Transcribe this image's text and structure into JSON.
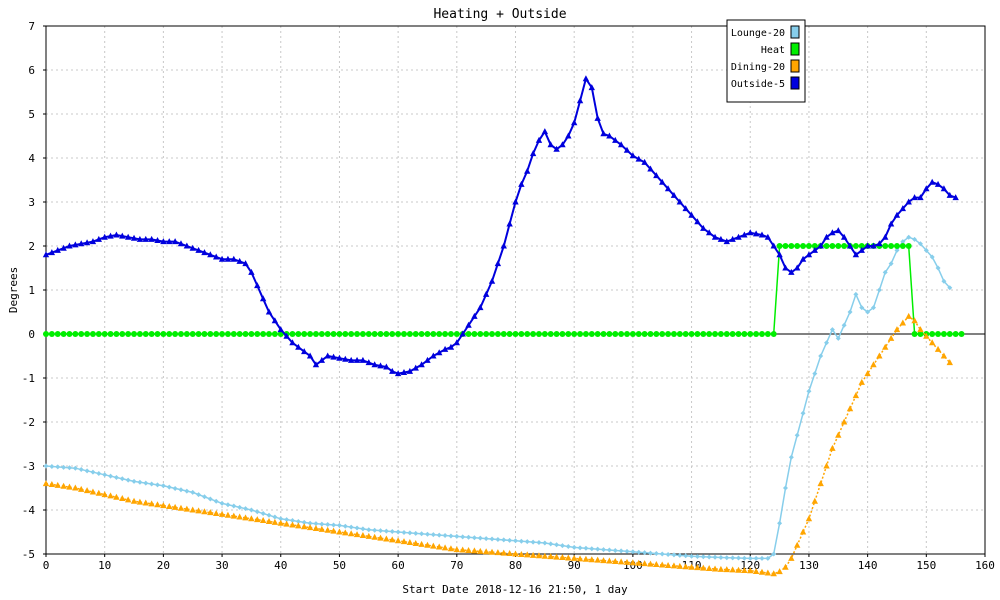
{
  "chart_data": {
    "type": "line",
    "title": "Heating + Outside",
    "xlabel": "Start Date 2018-12-16 21:50, 1 day",
    "ylabel": "Degrees",
    "xlim": [
      0,
      160
    ],
    "ylim": [
      -5,
      7
    ],
    "xticks": [
      0,
      10,
      20,
      30,
      40,
      50,
      60,
      70,
      80,
      90,
      100,
      110,
      120,
      130,
      140,
      150,
      160
    ],
    "yticks": [
      -5,
      -4,
      -3,
      -2,
      -1,
      0,
      1,
      2,
      3,
      4,
      5,
      6,
      7
    ],
    "grid": true,
    "legend_position": "top-right",
    "series": [
      {
        "name": "Lounge-20",
        "color": "#87CEEB",
        "marker": "diamond",
        "points": [
          [
            0,
            -3.0
          ],
          [
            5,
            -3.05
          ],
          [
            10,
            -3.2
          ],
          [
            15,
            -3.35
          ],
          [
            20,
            -3.45
          ],
          [
            25,
            -3.6
          ],
          [
            30,
            -3.85
          ],
          [
            35,
            -4.0
          ],
          [
            40,
            -4.2
          ],
          [
            45,
            -4.3
          ],
          [
            50,
            -4.35
          ],
          [
            55,
            -4.45
          ],
          [
            60,
            -4.5
          ],
          [
            65,
            -4.55
          ],
          [
            70,
            -4.6
          ],
          [
            75,
            -4.65
          ],
          [
            80,
            -4.7
          ],
          [
            85,
            -4.75
          ],
          [
            90,
            -4.85
          ],
          [
            95,
            -4.9
          ],
          [
            100,
            -4.95
          ],
          [
            105,
            -5.0
          ],
          [
            110,
            -5.05
          ],
          [
            115,
            -5.08
          ],
          [
            120,
            -5.1
          ],
          [
            123,
            -5.1
          ],
          [
            124,
            -5.0
          ],
          [
            125,
            -4.3
          ],
          [
            126,
            -3.5
          ],
          [
            127,
            -2.8
          ],
          [
            128,
            -2.3
          ],
          [
            129,
            -1.8
          ],
          [
            130,
            -1.3
          ],
          [
            131,
            -0.9
          ],
          [
            132,
            -0.5
          ],
          [
            133,
            -0.2
          ],
          [
            134,
            0.1
          ],
          [
            135,
            -0.1
          ],
          [
            136,
            0.2
          ],
          [
            137,
            0.5
          ],
          [
            138,
            0.9
          ],
          [
            139,
            0.6
          ],
          [
            140,
            0.5
          ],
          [
            141,
            0.6
          ],
          [
            142,
            1.0
          ],
          [
            143,
            1.4
          ],
          [
            144,
            1.6
          ],
          [
            145,
            1.9
          ],
          [
            146,
            2.1
          ],
          [
            147,
            2.2
          ],
          [
            148,
            2.15
          ],
          [
            149,
            2.05
          ],
          [
            150,
            1.9
          ],
          [
            151,
            1.75
          ],
          [
            152,
            1.5
          ],
          [
            153,
            1.2
          ],
          [
            154,
            1.05
          ]
        ]
      },
      {
        "name": "Heat",
        "color": "#00EE00",
        "marker": "circle",
        "points": [
          [
            0,
            0
          ],
          [
            124,
            0
          ],
          [
            125,
            2
          ],
          [
            147,
            2
          ],
          [
            148,
            0
          ],
          [
            156,
            0
          ]
        ]
      },
      {
        "name": "Dining-20",
        "color": "#FFA500",
        "marker": "triangle",
        "points": [
          [
            0,
            -3.4
          ],
          [
            5,
            -3.5
          ],
          [
            10,
            -3.65
          ],
          [
            15,
            -3.8
          ],
          [
            20,
            -3.9
          ],
          [
            25,
            -4.0
          ],
          [
            30,
            -4.1
          ],
          [
            35,
            -4.2
          ],
          [
            40,
            -4.3
          ],
          [
            45,
            -4.4
          ],
          [
            50,
            -4.5
          ],
          [
            55,
            -4.6
          ],
          [
            60,
            -4.7
          ],
          [
            65,
            -4.8
          ],
          [
            70,
            -4.9
          ],
          [
            75,
            -4.95
          ],
          [
            80,
            -5.0
          ],
          [
            85,
            -5.05
          ],
          [
            90,
            -5.1
          ],
          [
            95,
            -5.15
          ],
          [
            100,
            -5.2
          ],
          [
            105,
            -5.25
          ],
          [
            110,
            -5.3
          ],
          [
            115,
            -5.35
          ],
          [
            120,
            -5.38
          ],
          [
            124,
            -5.45
          ],
          [
            125,
            -5.4
          ],
          [
            126,
            -5.3
          ],
          [
            127,
            -5.1
          ],
          [
            128,
            -4.8
          ],
          [
            129,
            -4.5
          ],
          [
            130,
            -4.2
          ],
          [
            131,
            -3.8
          ],
          [
            132,
            -3.4
          ],
          [
            133,
            -3.0
          ],
          [
            134,
            -2.6
          ],
          [
            135,
            -2.3
          ],
          [
            136,
            -2.0
          ],
          [
            137,
            -1.7
          ],
          [
            138,
            -1.4
          ],
          [
            139,
            -1.1
          ],
          [
            140,
            -0.9
          ],
          [
            141,
            -0.7
          ],
          [
            142,
            -0.5
          ],
          [
            143,
            -0.3
          ],
          [
            144,
            -0.1
          ],
          [
            145,
            0.1
          ],
          [
            146,
            0.25
          ],
          [
            147,
            0.4
          ],
          [
            148,
            0.3
          ],
          [
            149,
            0.1
          ],
          [
            150,
            -0.05
          ],
          [
            151,
            -0.2
          ],
          [
            152,
            -0.35
          ],
          [
            153,
            -0.5
          ],
          [
            154,
            -0.65
          ]
        ]
      },
      {
        "name": "Outside-5",
        "color": "#0000DD",
        "marker": "triangle",
        "points": [
          [
            0,
            1.8
          ],
          [
            2,
            1.9
          ],
          [
            4,
            2.0
          ],
          [
            6,
            2.05
          ],
          [
            8,
            2.1
          ],
          [
            10,
            2.2
          ],
          [
            12,
            2.25
          ],
          [
            14,
            2.2
          ],
          [
            16,
            2.15
          ],
          [
            18,
            2.15
          ],
          [
            20,
            2.1
          ],
          [
            22,
            2.1
          ],
          [
            24,
            2.0
          ],
          [
            26,
            1.9
          ],
          [
            28,
            1.8
          ],
          [
            30,
            1.7
          ],
          [
            32,
            1.7
          ],
          [
            34,
            1.6
          ],
          [
            35,
            1.4
          ],
          [
            36,
            1.1
          ],
          [
            37,
            0.8
          ],
          [
            38,
            0.5
          ],
          [
            39,
            0.3
          ],
          [
            40,
            0.1
          ],
          [
            42,
            -0.2
          ],
          [
            44,
            -0.4
          ],
          [
            45,
            -0.5
          ],
          [
            46,
            -0.7
          ],
          [
            47,
            -0.6
          ],
          [
            48,
            -0.5
          ],
          [
            50,
            -0.55
          ],
          [
            52,
            -0.6
          ],
          [
            54,
            -0.6
          ],
          [
            56,
            -0.7
          ],
          [
            58,
            -0.75
          ],
          [
            59,
            -0.85
          ],
          [
            60,
            -0.9
          ],
          [
            62,
            -0.85
          ],
          [
            64,
            -0.7
          ],
          [
            66,
            -0.5
          ],
          [
            68,
            -0.35
          ],
          [
            69,
            -0.3
          ],
          [
            70,
            -0.2
          ],
          [
            71,
            0.0
          ],
          [
            72,
            0.2
          ],
          [
            73,
            0.4
          ],
          [
            74,
            0.6
          ],
          [
            75,
            0.9
          ],
          [
            76,
            1.2
          ],
          [
            77,
            1.6
          ],
          [
            78,
            2.0
          ],
          [
            79,
            2.5
          ],
          [
            80,
            3.0
          ],
          [
            81,
            3.4
          ],
          [
            82,
            3.7
          ],
          [
            83,
            4.1
          ],
          [
            84,
            4.4
          ],
          [
            85,
            4.6
          ],
          [
            86,
            4.3
          ],
          [
            87,
            4.2
          ],
          [
            88,
            4.3
          ],
          [
            89,
            4.5
          ],
          [
            90,
            4.8
          ],
          [
            91,
            5.3
          ],
          [
            92,
            5.8
          ],
          [
            93,
            5.6
          ],
          [
            94,
            4.9
          ],
          [
            95,
            4.55
          ],
          [
            96,
            4.5
          ],
          [
            98,
            4.3
          ],
          [
            100,
            4.05
          ],
          [
            102,
            3.9
          ],
          [
            104,
            3.6
          ],
          [
            106,
            3.3
          ],
          [
            108,
            3.0
          ],
          [
            110,
            2.7
          ],
          [
            112,
            2.4
          ],
          [
            114,
            2.2
          ],
          [
            116,
            2.1
          ],
          [
            118,
            2.2
          ],
          [
            120,
            2.3
          ],
          [
            122,
            2.25
          ],
          [
            123,
            2.2
          ],
          [
            124,
            2.0
          ],
          [
            125,
            1.8
          ],
          [
            126,
            1.5
          ],
          [
            127,
            1.4
          ],
          [
            128,
            1.5
          ],
          [
            129,
            1.7
          ],
          [
            130,
            1.8
          ],
          [
            131,
            1.9
          ],
          [
            132,
            2.0
          ],
          [
            133,
            2.2
          ],
          [
            134,
            2.3
          ],
          [
            135,
            2.35
          ],
          [
            136,
            2.2
          ],
          [
            137,
            2.0
          ],
          [
            138,
            1.8
          ],
          [
            139,
            1.9
          ],
          [
            140,
            2.0
          ],
          [
            141,
            2.0
          ],
          [
            142,
            2.05
          ],
          [
            143,
            2.2
          ],
          [
            144,
            2.5
          ],
          [
            145,
            2.7
          ],
          [
            146,
            2.85
          ],
          [
            147,
            3.0
          ],
          [
            148,
            3.1
          ],
          [
            149,
            3.1
          ],
          [
            150,
            3.3
          ],
          [
            151,
            3.45
          ],
          [
            152,
            3.4
          ],
          [
            153,
            3.3
          ],
          [
            154,
            3.15
          ],
          [
            155,
            3.1
          ]
        ]
      }
    ]
  }
}
